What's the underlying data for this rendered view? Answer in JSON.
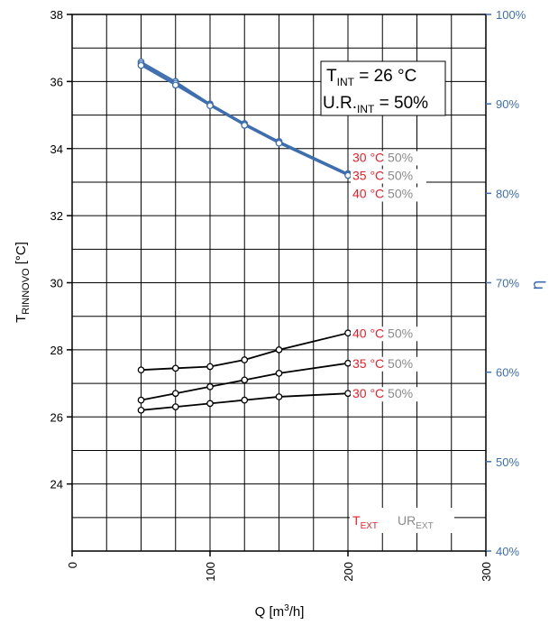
{
  "chart_data": {
    "type": "line",
    "xlabel": {
      "main": "Q [m",
      "sup": "3",
      "rest": "/h]"
    },
    "ylabel_left": {
      "main": "T",
      "sub": "RINNOVO",
      "rest": " [°C]"
    },
    "ylabel_right": "η",
    "xlim": [
      0,
      300
    ],
    "ylim_left": [
      22,
      38
    ],
    "ylim_right": [
      40,
      100
    ],
    "x_ticks": [
      "0",
      "100",
      "200",
      "300"
    ],
    "y_left_ticks": [
      "24",
      "26",
      "28",
      "30",
      "32",
      "34",
      "36",
      "38"
    ],
    "y_right_ticks": [
      "40%",
      "50%",
      "60%",
      "70%",
      "80%",
      "90%",
      "100%"
    ],
    "grid": true,
    "info_box": {
      "line1": {
        "main": "T",
        "sub": "INT",
        "rest": " = 26 °C"
      },
      "line2": {
        "main": "U.R.",
        "sub": "INT",
        "rest": " = 50%"
      }
    },
    "legend": {
      "text_ext": {
        "main": "T",
        "sub": "EXT"
      },
      "ur_ext": {
        "main": "UR",
        "sub": "EXT"
      }
    },
    "series_left": [
      {
        "label_temp": "30 °C",
        "label_rh": " 50%",
        "x": [
          50,
          75,
          100,
          125,
          150,
          200
        ],
        "y": [
          26.2,
          26.3,
          26.4,
          26.5,
          26.6,
          26.7
        ]
      },
      {
        "label_temp": "35 °C",
        "label_rh": " 50%",
        "x": [
          50,
          75,
          100,
          125,
          150,
          200
        ],
        "y": [
          26.5,
          26.7,
          26.9,
          27.1,
          27.3,
          27.6
        ]
      },
      {
        "label_temp": "40 °C",
        "label_rh": " 50%",
        "x": [
          50,
          75,
          100,
          125,
          150,
          200
        ],
        "y": [
          27.4,
          27.45,
          27.5,
          27.7,
          28.0,
          28.5
        ]
      }
    ],
    "series_right": [
      {
        "label_temp": "30 °C",
        "label_rh": " 50%",
        "x": [
          50,
          75,
          100,
          125,
          150,
          200
        ],
        "y": [
          94.7,
          92.5,
          90.0,
          87.8,
          85.8,
          82.2
        ]
      },
      {
        "label_temp": "35 °C",
        "label_rh": " 50%",
        "x": [
          50,
          75,
          100,
          125,
          150,
          200
        ],
        "y": [
          94.5,
          92.3,
          89.9,
          87.7,
          85.7,
          82.1
        ]
      },
      {
        "label_temp": "40 °C",
        "label_rh": " 50%",
        "x": [
          50,
          75,
          100,
          125,
          150,
          200
        ],
        "y": [
          94.3,
          92.1,
          89.8,
          87.6,
          85.6,
          82.0
        ]
      }
    ],
    "colors": {
      "left_series": "#000000",
      "right_series": "#3d6eb0",
      "temp_label": "#e8202a",
      "rh_label": "#8a8a8a",
      "right_axis": "#3d6eb0"
    }
  }
}
